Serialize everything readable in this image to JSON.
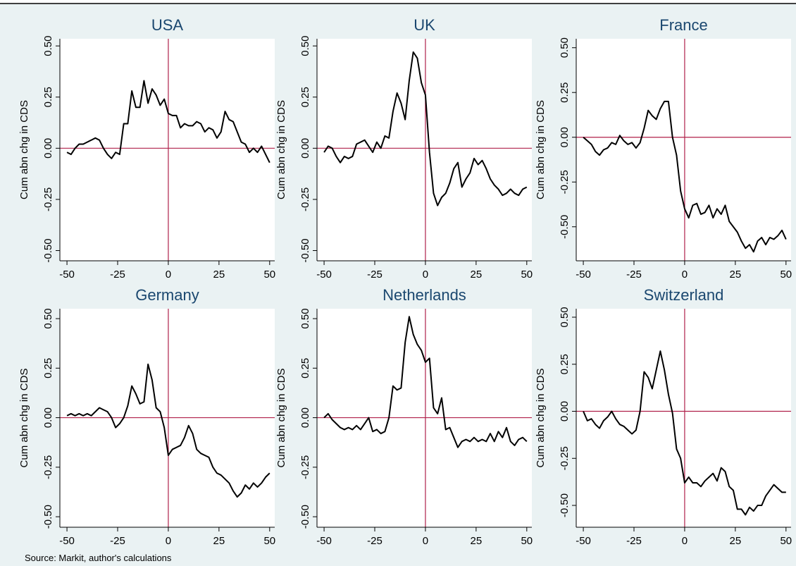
{
  "chart_data": [
    {
      "type": "line",
      "title": "USA",
      "ylabel": "Cum abn chg in CDS",
      "x": [
        -50,
        -48,
        -46,
        -44,
        -42,
        -40,
        -38,
        -36,
        -34,
        -32,
        -30,
        -28,
        -26,
        -24,
        -22,
        -20,
        -18,
        -16,
        -14,
        -12,
        -10,
        -8,
        -6,
        -4,
        -2,
        0,
        2,
        4,
        6,
        8,
        10,
        12,
        14,
        16,
        18,
        20,
        22,
        24,
        26,
        28,
        30,
        32,
        34,
        36,
        38,
        40,
        42,
        44,
        46,
        48,
        50
      ],
      "series": [
        {
          "name": "USA",
          "color": "#000000",
          "values": [
            -0.02,
            -0.03,
            0.0,
            0.02,
            0.02,
            0.03,
            0.04,
            0.05,
            0.04,
            0.0,
            -0.03,
            -0.05,
            -0.02,
            -0.03,
            0.12,
            0.12,
            0.28,
            0.2,
            0.2,
            0.33,
            0.22,
            0.29,
            0.26,
            0.21,
            0.24,
            0.17,
            0.16,
            0.16,
            0.1,
            0.12,
            0.11,
            0.11,
            0.13,
            0.12,
            0.08,
            0.1,
            0.09,
            0.05,
            0.08,
            0.18,
            0.14,
            0.13,
            0.08,
            0.03,
            0.02,
            -0.02,
            0.0,
            -0.02,
            0.01,
            -0.03,
            -0.07
          ]
        }
      ],
      "xlim": [
        -53.5,
        52.5
      ],
      "xticks": [
        -50,
        -25,
        0,
        25,
        50
      ],
      "ylim": [
        -0.55,
        0.535
      ],
      "yticks": [
        {
          "value": -0.5,
          "label": "-0.50"
        },
        {
          "value": -0.25,
          "label": "-0.25"
        },
        {
          "value": 0,
          "label": "0.00"
        },
        {
          "value": 0.25,
          "label": "0.25"
        },
        {
          "value": 0.5,
          "label": "0.50"
        }
      ]
    },
    {
      "type": "line",
      "title": "UK",
      "ylabel": "Cum abn chg in CDS",
      "x": [
        -50,
        -48,
        -46,
        -44,
        -42,
        -40,
        -38,
        -36,
        -34,
        -32,
        -30,
        -28,
        -26,
        -24,
        -22,
        -20,
        -18,
        -16,
        -14,
        -12,
        -10,
        -8,
        -6,
        -4,
        -2,
        0,
        2,
        4,
        6,
        8,
        10,
        12,
        14,
        16,
        18,
        20,
        22,
        24,
        26,
        28,
        30,
        32,
        34,
        36,
        38,
        40,
        42,
        44,
        46,
        48,
        50
      ],
      "series": [
        {
          "name": "UK",
          "color": "#000000",
          "values": [
            -0.02,
            0.01,
            0.0,
            -0.04,
            -0.07,
            -0.04,
            -0.05,
            -0.04,
            0.02,
            0.03,
            0.04,
            0.01,
            -0.02,
            0.03,
            0.0,
            0.06,
            0.05,
            0.18,
            0.27,
            0.22,
            0.14,
            0.33,
            0.47,
            0.44,
            0.32,
            0.26,
            -0.02,
            -0.22,
            -0.28,
            -0.24,
            -0.22,
            -0.17,
            -0.1,
            -0.07,
            -0.19,
            -0.15,
            -0.12,
            -0.05,
            -0.08,
            -0.06,
            -0.1,
            -0.15,
            -0.18,
            -0.2,
            -0.23,
            -0.22,
            -0.2,
            -0.22,
            -0.23,
            -0.2,
            -0.19
          ]
        }
      ],
      "xlim": [
        -53.5,
        52.5
      ],
      "xticks": [
        -50,
        -25,
        0,
        25,
        50
      ],
      "ylim": [
        -0.55,
        0.535
      ],
      "yticks": [
        {
          "value": -0.5,
          "label": "-0.50"
        },
        {
          "value": -0.25,
          "label": "-0.25"
        },
        {
          "value": 0,
          "label": "0.00"
        },
        {
          "value": 0.25,
          "label": "0.25"
        },
        {
          "value": 0.5,
          "label": "0.50"
        }
      ]
    },
    {
      "type": "line",
      "title": "France",
      "ylabel": "Cum abn chg in CDS",
      "x": [
        -50,
        -48,
        -46,
        -44,
        -42,
        -40,
        -38,
        -36,
        -34,
        -32,
        -30,
        -28,
        -26,
        -24,
        -22,
        -20,
        -18,
        -16,
        -14,
        -12,
        -10,
        -8,
        -6,
        -4,
        -2,
        0,
        2,
        4,
        6,
        8,
        10,
        12,
        14,
        16,
        18,
        20,
        22,
        24,
        26,
        28,
        30,
        32,
        34,
        36,
        38,
        40,
        42,
        44,
        46,
        48,
        50
      ],
      "series": [
        {
          "name": "France",
          "color": "#000000",
          "values": [
            0.0,
            -0.02,
            -0.04,
            -0.08,
            -0.1,
            -0.07,
            -0.06,
            -0.03,
            -0.04,
            0.01,
            -0.02,
            -0.04,
            -0.03,
            -0.06,
            -0.03,
            0.05,
            0.15,
            0.12,
            0.1,
            0.16,
            0.2,
            0.2,
            0.0,
            -0.1,
            -0.3,
            -0.4,
            -0.45,
            -0.38,
            -0.37,
            -0.43,
            -0.42,
            -0.38,
            -0.45,
            -0.4,
            -0.43,
            -0.38,
            -0.47,
            -0.5,
            -0.53,
            -0.58,
            -0.62,
            -0.6,
            -0.64,
            -0.58,
            -0.56,
            -0.6,
            -0.56,
            -0.57,
            -0.55,
            -0.52,
            -0.57
          ]
        }
      ],
      "xlim": [
        -53.5,
        52.5
      ],
      "xticks": [
        -50,
        -25,
        0,
        25,
        50
      ],
      "ylim": [
        -0.69,
        0.55
      ],
      "yticks": [
        {
          "value": -0.5,
          "label": "-0.50"
        },
        {
          "value": -0.25,
          "label": "-0.25"
        },
        {
          "value": 0,
          "label": "0.00"
        },
        {
          "value": 0.25,
          "label": "0.25"
        },
        {
          "value": 0.5,
          "label": "0.50"
        }
      ]
    },
    {
      "type": "line",
      "title": "Germany",
      "ylabel": "Cum abn chg in CDS",
      "x": [
        -50,
        -48,
        -46,
        -44,
        -42,
        -40,
        -38,
        -36,
        -34,
        -32,
        -30,
        -28,
        -26,
        -24,
        -22,
        -20,
        -18,
        -16,
        -14,
        -12,
        -10,
        -8,
        -6,
        -4,
        -2,
        0,
        2,
        4,
        6,
        8,
        10,
        12,
        14,
        16,
        18,
        20,
        22,
        24,
        26,
        28,
        30,
        32,
        34,
        36,
        38,
        40,
        42,
        44,
        46,
        48,
        50
      ],
      "series": [
        {
          "name": "Germany",
          "color": "#000000",
          "values": [
            0.01,
            0.02,
            0.01,
            0.02,
            0.01,
            0.02,
            0.01,
            0.03,
            0.05,
            0.04,
            0.03,
            0.0,
            -0.05,
            -0.03,
            0.0,
            0.06,
            0.16,
            0.12,
            0.07,
            0.08,
            0.27,
            0.19,
            0.05,
            0.03,
            -0.05,
            -0.19,
            -0.16,
            -0.15,
            -0.14,
            -0.1,
            -0.04,
            -0.08,
            -0.16,
            -0.18,
            -0.19,
            -0.2,
            -0.25,
            -0.28,
            -0.29,
            -0.31,
            -0.33,
            -0.37,
            -0.4,
            -0.38,
            -0.34,
            -0.36,
            -0.33,
            -0.35,
            -0.33,
            -0.3,
            -0.28
          ]
        }
      ],
      "xlim": [
        -53.5,
        52.5
      ],
      "xticks": [
        -50,
        -25,
        0,
        25,
        50
      ],
      "ylim": [
        -0.553,
        0.55
      ],
      "yticks": [
        {
          "value": -0.5,
          "label": "-0.50"
        },
        {
          "value": -0.25,
          "label": "-0.25"
        },
        {
          "value": 0,
          "label": "0.00"
        },
        {
          "value": 0.25,
          "label": "0.25"
        },
        {
          "value": 0.5,
          "label": "0.50"
        }
      ]
    },
    {
      "type": "line",
      "title": "Netherlands",
      "ylabel": "Cum abn chg in CDS",
      "x": [
        -50,
        -48,
        -46,
        -44,
        -42,
        -40,
        -38,
        -36,
        -34,
        -32,
        -30,
        -28,
        -26,
        -24,
        -22,
        -20,
        -18,
        -16,
        -14,
        -12,
        -10,
        -8,
        -6,
        -4,
        -2,
        0,
        2,
        4,
        6,
        8,
        10,
        12,
        14,
        16,
        18,
        20,
        22,
        24,
        26,
        28,
        30,
        32,
        34,
        36,
        38,
        40,
        42,
        44,
        46,
        48,
        50
      ],
      "series": [
        {
          "name": "Netherlands",
          "color": "#000000",
          "values": [
            0.0,
            0.02,
            -0.01,
            -0.03,
            -0.05,
            -0.06,
            -0.05,
            -0.06,
            -0.04,
            -0.06,
            -0.03,
            0.0,
            -0.07,
            -0.06,
            -0.08,
            -0.07,
            0.0,
            0.16,
            0.14,
            0.15,
            0.38,
            0.51,
            0.42,
            0.37,
            0.34,
            0.28,
            0.3,
            0.05,
            0.02,
            0.1,
            -0.06,
            -0.05,
            -0.1,
            -0.15,
            -0.12,
            -0.11,
            -0.12,
            -0.1,
            -0.12,
            -0.11,
            -0.12,
            -0.08,
            -0.12,
            -0.07,
            -0.1,
            -0.05,
            -0.12,
            -0.14,
            -0.11,
            -0.1,
            -0.12
          ]
        }
      ],
      "xlim": [
        -53.5,
        52.5
      ],
      "xticks": [
        -50,
        -25,
        0,
        25,
        50
      ],
      "ylim": [
        -0.553,
        0.55
      ],
      "yticks": [
        {
          "value": -0.5,
          "label": "-0.50"
        },
        {
          "value": -0.25,
          "label": "-0.25"
        },
        {
          "value": 0,
          "label": "0.00"
        },
        {
          "value": 0.25,
          "label": "0.25"
        },
        {
          "value": 0.5,
          "label": "0.50"
        }
      ]
    },
    {
      "type": "line",
      "title": "Switzerland",
      "ylabel": "Cum abn chg in CDS",
      "x": [
        -50,
        -48,
        -46,
        -44,
        -42,
        -40,
        -38,
        -36,
        -34,
        -32,
        -30,
        -28,
        -26,
        -24,
        -22,
        -20,
        -18,
        -16,
        -14,
        -12,
        -10,
        -8,
        -6,
        -4,
        -2,
        0,
        2,
        4,
        6,
        8,
        10,
        12,
        14,
        16,
        18,
        20,
        22,
        24,
        26,
        28,
        30,
        32,
        34,
        36,
        38,
        40,
        42,
        44,
        46,
        48,
        50
      ],
      "series": [
        {
          "name": "Switzerland",
          "color": "#000000",
          "values": [
            0.0,
            -0.05,
            -0.04,
            -0.07,
            -0.09,
            -0.05,
            -0.03,
            0.0,
            -0.04,
            -0.07,
            -0.08,
            -0.1,
            -0.12,
            -0.1,
            0.0,
            0.21,
            0.18,
            0.12,
            0.22,
            0.32,
            0.22,
            0.09,
            -0.01,
            -0.2,
            -0.25,
            -0.38,
            -0.35,
            -0.38,
            -0.38,
            -0.4,
            -0.37,
            -0.35,
            -0.33,
            -0.37,
            -0.3,
            -0.32,
            -0.4,
            -0.42,
            -0.52,
            -0.52,
            -0.55,
            -0.51,
            -0.53,
            -0.5,
            -0.5,
            -0.45,
            -0.42,
            -0.39,
            -0.41,
            -0.43,
            -0.43
          ]
        }
      ],
      "xlim": [
        -53.5,
        52.5
      ],
      "xticks": [
        -50,
        -25,
        0,
        25,
        50
      ],
      "ylim": [
        -0.616,
        0.545
      ],
      "yticks": [
        {
          "value": -0.5,
          "label": "-0.50"
        },
        {
          "value": -0.25,
          "label": "-0.25"
        },
        {
          "value": 0,
          "label": "0.00"
        },
        {
          "value": 0.25,
          "label": "0.25"
        },
        {
          "value": 0.5,
          "label": "0.50"
        }
      ]
    }
  ],
  "source": "Source: Markit, author's calculations"
}
